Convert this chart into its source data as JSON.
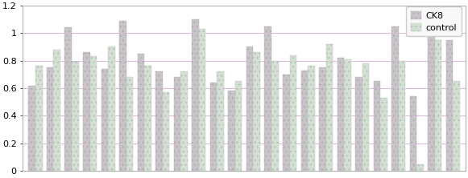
{
  "ck8_values": [
    0.62,
    0.75,
    1.04,
    0.86,
    0.74,
    1.09,
    0.85,
    0.72,
    0.68,
    1.1,
    0.64,
    0.58,
    0.9,
    1.05,
    0.7,
    0.73,
    0.75,
    0.82,
    0.68,
    0.65,
    1.05,
    0.54,
    1.08,
    0.95
  ],
  "control_values": [
    0.76,
    0.88,
    0.79,
    0.83,
    0.9,
    0.68,
    0.76,
    0.57,
    0.72,
    1.03,
    0.72,
    0.65,
    0.86,
    0.8,
    0.84,
    0.76,
    0.92,
    0.81,
    0.78,
    0.53,
    0.8,
    0.05,
    0.95,
    0.65
  ],
  "ck8_color": "#c8c4c8",
  "control_color": "#d4e0d4",
  "ck8_label": "CK8",
  "control_label": "control",
  "ylim": [
    0,
    1.2
  ],
  "yticks": [
    0,
    0.2,
    0.4,
    0.6,
    0.8,
    1.0,
    1.2
  ],
  "bar_width": 0.38,
  "grid_color": "#e0b0e0",
  "grid_linewidth": 0.7,
  "background_color": "#ffffff",
  "legend_fontsize": 8,
  "tick_fontsize": 8,
  "figure_facecolor": "#ffffff",
  "ax_facecolor": "#ffffff",
  "spine_color": "#aaaaaa",
  "hatch_ck8": "...",
  "hatch_control": "..."
}
